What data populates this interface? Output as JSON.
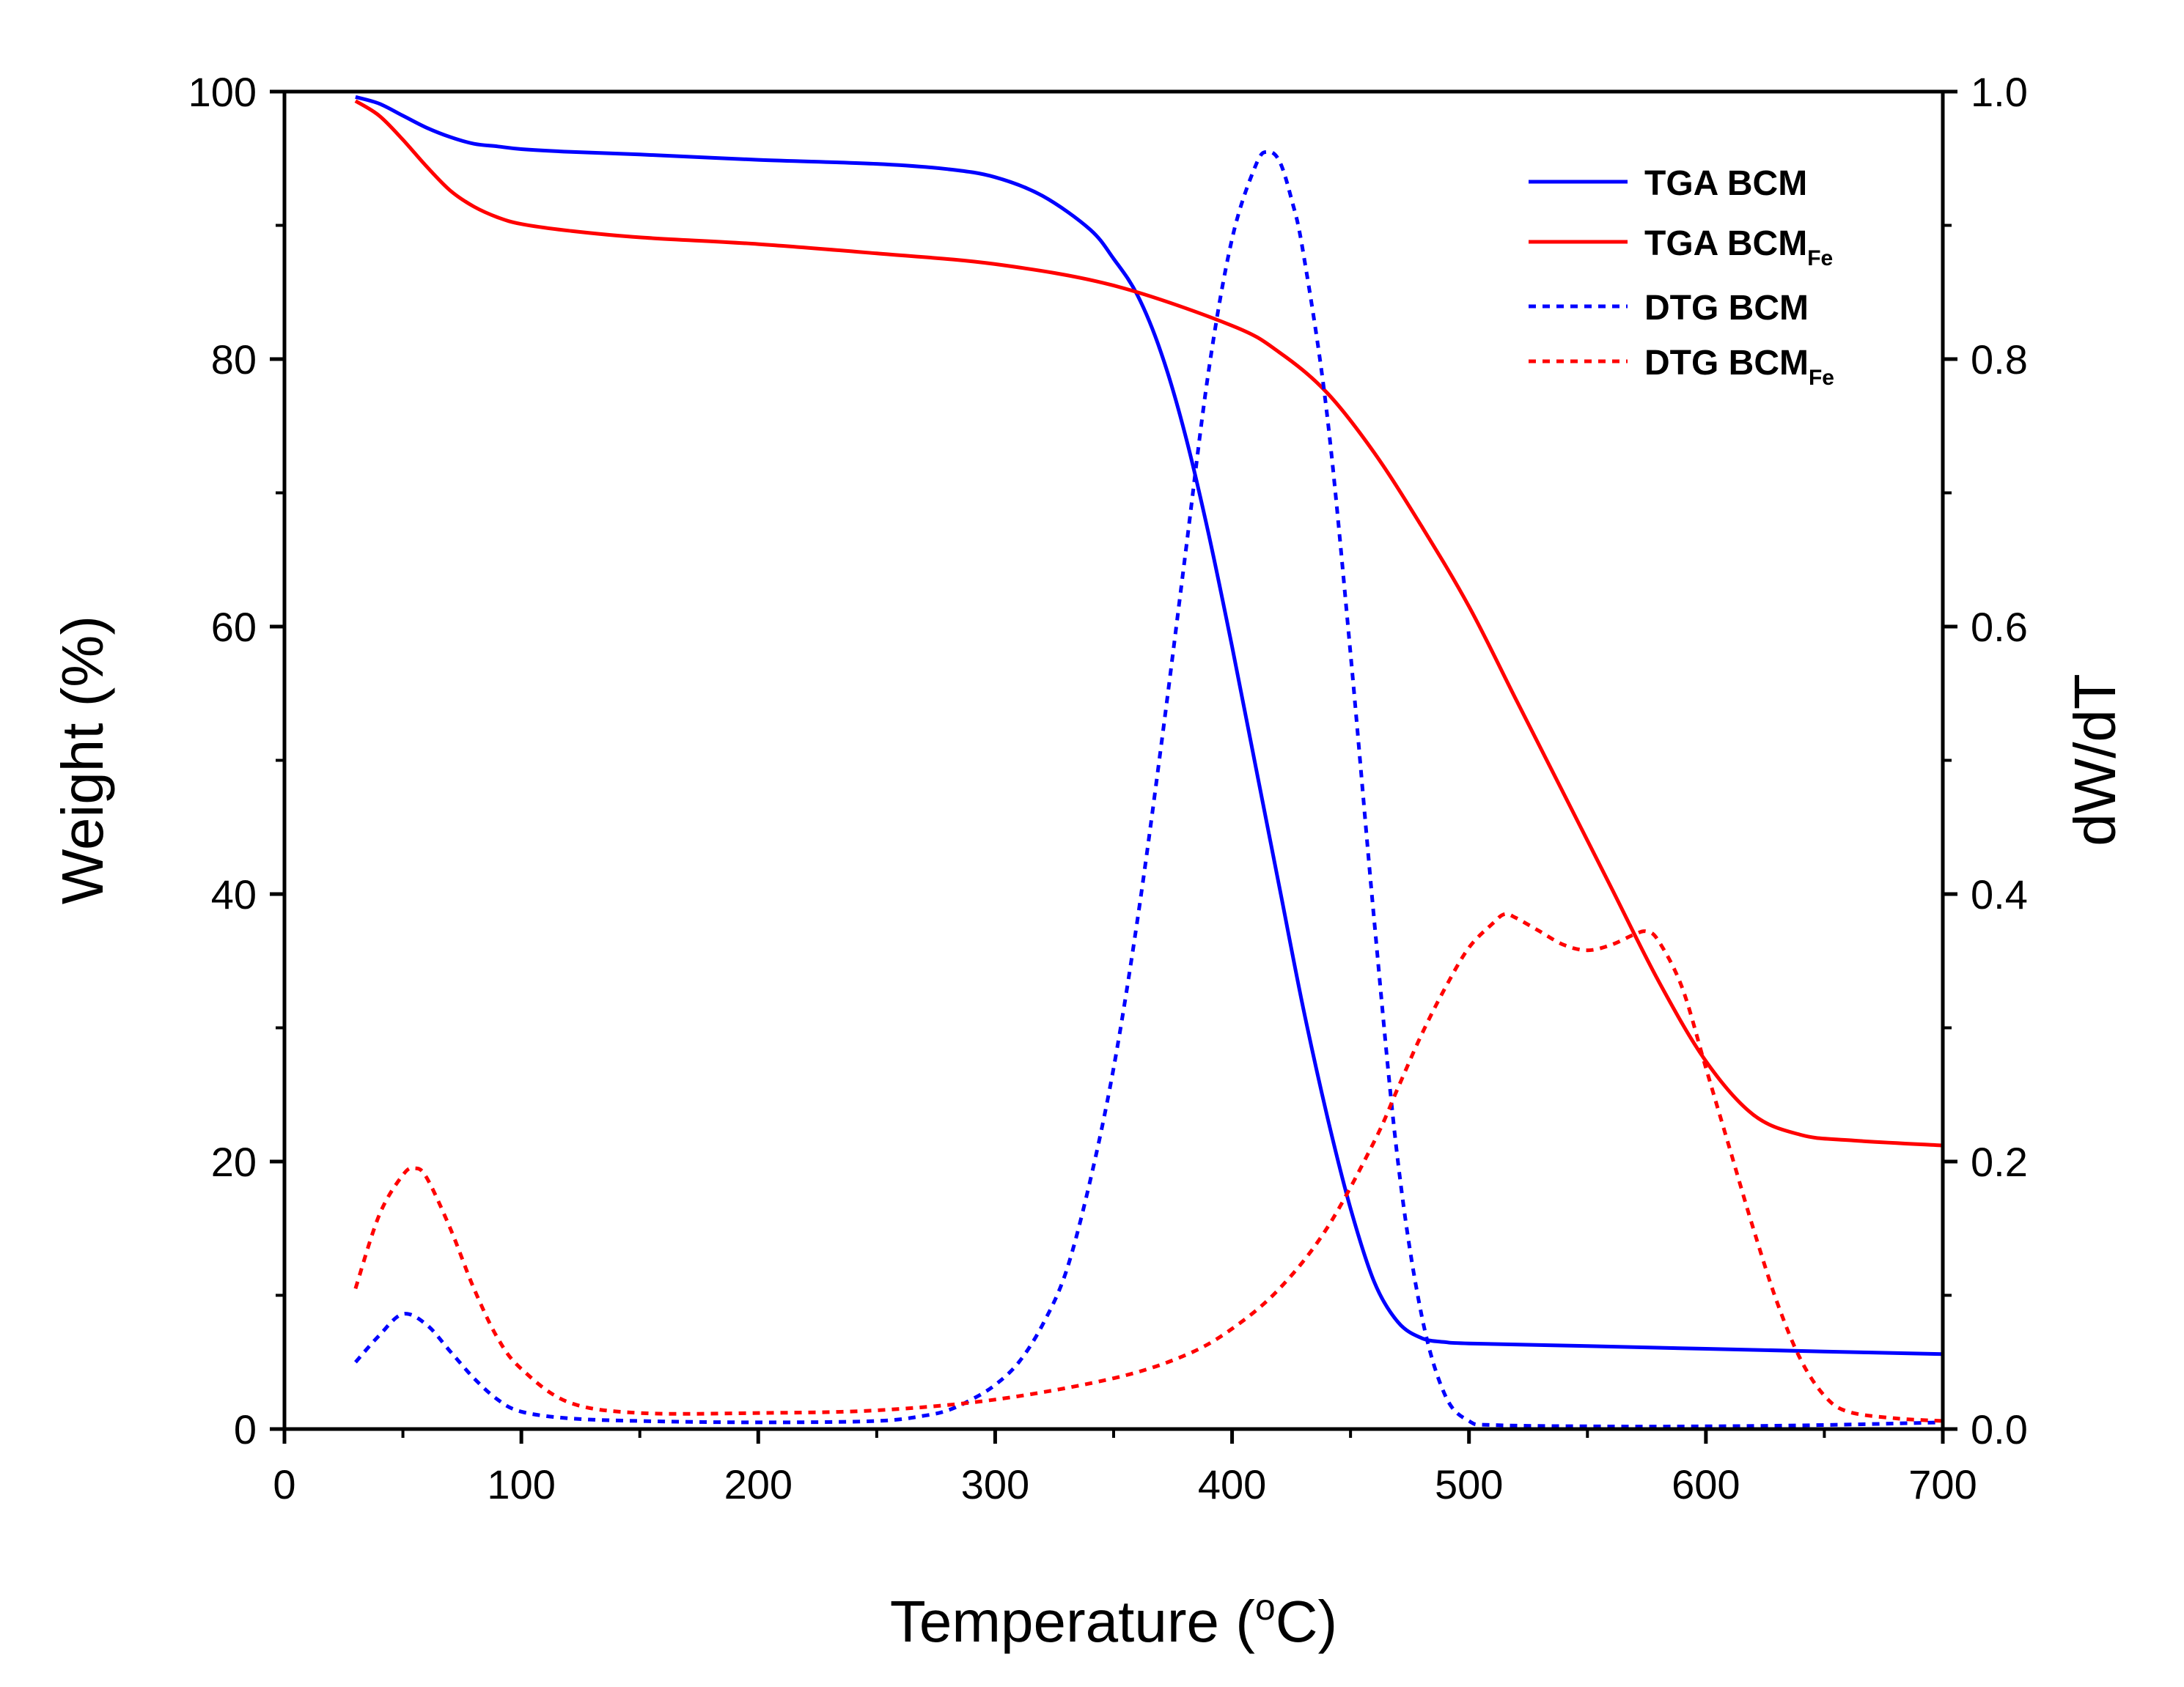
{
  "chart_data": {
    "type": "line",
    "xlabel": "Temperature",
    "xlabel_unit_prefix": "(",
    "xlabel_unit_sup": "o",
    "xlabel_unit_rest": "C)",
    "ylabel_left": "Weight (%)",
    "ylabel_right": "dW/dT",
    "xlim": [
      0,
      700
    ],
    "ylim_left": [
      0,
      100
    ],
    "ylim_right": [
      0.0,
      1.0
    ],
    "x_ticks": [
      "0",
      "100",
      "200",
      "300",
      "400",
      "500",
      "600",
      "700"
    ],
    "y_left_ticks": [
      "0",
      "20",
      "40",
      "60",
      "80",
      "100"
    ],
    "y_right_ticks": [
      "0.0",
      "0.2",
      "0.4",
      "0.6",
      "0.8",
      "1.0"
    ],
    "legend_position": "top-right",
    "series": [
      {
        "name": "TGA BCM",
        "label_main": "TGA BCM",
        "label_sub": "",
        "axis": "left",
        "color": "#0000ff",
        "dashed": false,
        "x": [
          30,
          40,
          50,
          60,
          70,
          80,
          90,
          100,
          120,
          150,
          200,
          250,
          280,
          300,
          320,
          340,
          350,
          360,
          370,
          380,
          390,
          400,
          410,
          420,
          430,
          440,
          450,
          460,
          470,
          480,
          490,
          500,
          550,
          600,
          650,
          700
        ],
        "y": [
          99.6,
          99.1,
          98.2,
          97.3,
          96.6,
          96.1,
          95.9,
          95.7,
          95.5,
          95.3,
          94.9,
          94.6,
          94.2,
          93.6,
          92.2,
          89.7,
          87.5,
          84.8,
          80.5,
          74.5,
          67.0,
          58.5,
          49.5,
          40.5,
          31.5,
          23.5,
          16.5,
          11.0,
          8.0,
          6.8,
          6.5,
          6.4,
          6.2,
          6.0,
          5.8,
          5.6
        ]
      },
      {
        "name": "TGA BCMFe",
        "label_main": "TGA BCM",
        "label_sub": "Fe",
        "axis": "left",
        "color": "#ff0000",
        "dashed": false,
        "x": [
          30,
          40,
          50,
          60,
          70,
          80,
          90,
          100,
          120,
          150,
          200,
          250,
          300,
          350,
          400,
          420,
          440,
          460,
          480,
          500,
          520,
          540,
          560,
          580,
          600,
          620,
          640,
          660,
          700
        ],
        "y": [
          99.3,
          98.2,
          96.4,
          94.4,
          92.6,
          91.4,
          90.6,
          90.1,
          89.6,
          89.1,
          88.6,
          87.9,
          87.1,
          85.5,
          82.5,
          80.5,
          77.5,
          73.0,
          67.5,
          61.5,
          54.5,
          47.5,
          40.5,
          33.5,
          27.5,
          23.5,
          22.0,
          21.6,
          21.2
        ]
      },
      {
        "name": "DTG BCM",
        "label_main": "DTG BCM",
        "label_sub": "",
        "axis": "right",
        "color": "#0000ff",
        "dashed": true,
        "x": [
          30,
          40,
          50,
          60,
          70,
          80,
          90,
          100,
          120,
          150,
          200,
          250,
          270,
          280,
          290,
          300,
          310,
          320,
          330,
          340,
          350,
          360,
          370,
          380,
          390,
          400,
          410,
          415,
          420,
          425,
          430,
          440,
          450,
          460,
          470,
          480,
          490,
          500,
          510,
          550,
          600,
          650,
          700
        ],
        "y": [
          0.05,
          0.07,
          0.086,
          0.078,
          0.058,
          0.038,
          0.022,
          0.013,
          0.008,
          0.006,
          0.005,
          0.006,
          0.01,
          0.014,
          0.022,
          0.033,
          0.05,
          0.078,
          0.118,
          0.185,
          0.27,
          0.38,
          0.51,
          0.65,
          0.79,
          0.89,
          0.945,
          0.955,
          0.948,
          0.92,
          0.88,
          0.76,
          0.58,
          0.38,
          0.2,
          0.085,
          0.025,
          0.006,
          0.003,
          0.002,
          0.002,
          0.003,
          0.005
        ]
      },
      {
        "name": "DTG BCMFe",
        "label_main": "DTG BCM",
        "label_sub": "Fe",
        "axis": "right",
        "color": "#ff0000",
        "dashed": true,
        "x": [
          30,
          40,
          50,
          55,
          60,
          70,
          80,
          90,
          100,
          120,
          150,
          200,
          250,
          300,
          350,
          380,
          400,
          420,
          440,
          460,
          470,
          480,
          490,
          500,
          510,
          515,
          520,
          530,
          540,
          550,
          560,
          570,
          575,
          580,
          590,
          600,
          610,
          620,
          630,
          640,
          650,
          660,
          680,
          700
        ],
        "y": [
          0.105,
          0.16,
          0.19,
          0.195,
          0.188,
          0.15,
          0.105,
          0.068,
          0.045,
          0.02,
          0.012,
          0.012,
          0.014,
          0.022,
          0.038,
          0.055,
          0.075,
          0.105,
          0.15,
          0.215,
          0.255,
          0.295,
          0.33,
          0.36,
          0.378,
          0.385,
          0.382,
          0.372,
          0.362,
          0.358,
          0.362,
          0.37,
          0.372,
          0.365,
          0.33,
          0.27,
          0.21,
          0.15,
          0.095,
          0.052,
          0.025,
          0.013,
          0.008,
          0.006
        ]
      }
    ]
  }
}
